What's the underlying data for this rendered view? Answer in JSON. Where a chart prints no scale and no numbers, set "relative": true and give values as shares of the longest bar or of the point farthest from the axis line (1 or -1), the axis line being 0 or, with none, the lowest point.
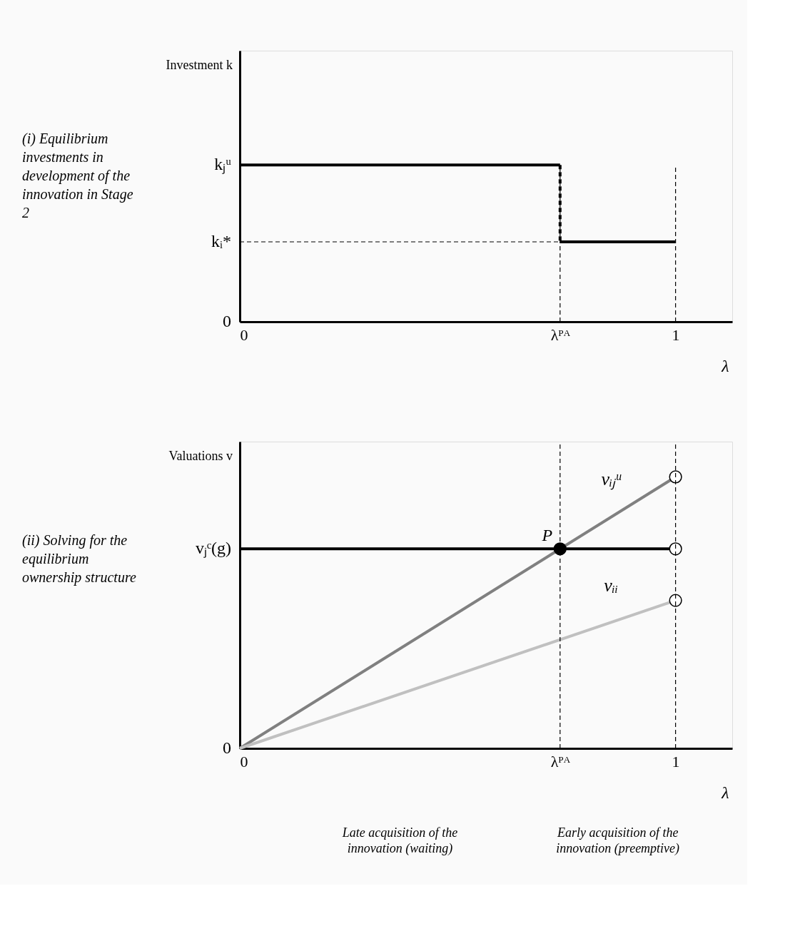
{
  "chart_data": [
    {
      "type": "line",
      "relative": true,
      "ylabel": "Investment k",
      "xlabel": "λ",
      "xlim": [
        0,
        1.13
      ],
      "xticks": [
        0,
        {
          "value": 0.735,
          "label": "λᴾᴬ"
        },
        1
      ],
      "ref_lines": [
        {
          "axis": "x",
          "value": 0.735,
          "line_style": "dashed",
          "color": "#000000"
        },
        {
          "axis": "x",
          "value": 1,
          "line_style": "dashed",
          "color": "#000000"
        },
        {
          "axis": "y",
          "value": 0.51,
          "line_style": "dashed",
          "color": "#000000",
          "label": "kᵢ*"
        }
      ],
      "series": [
        {
          "name": "kⱼᵘ",
          "x": [
            0,
            0.735
          ],
          "values": [
            1,
            1
          ],
          "color": "#000000"
        },
        {
          "x": [
            0.735,
            0.735
          ],
          "values": [
            1,
            0.51
          ],
          "color": "#000000",
          "line_style": "dashed"
        },
        {
          "x": [
            0.735,
            1
          ],
          "values": [
            0.51,
            0.51
          ],
          "color": "#000000"
        }
      ],
      "annotations": [
        "(i) Equilibrium investments in development of the innovation in Stage 2",
        "0"
      ]
    },
    {
      "type": "line",
      "relative": true,
      "ylabel": "Valuations v",
      "xlabel": "λ",
      "xlim": [
        0,
        1.13
      ],
      "xticks": [
        0,
        {
          "value": 0.735,
          "label": "λᴾᴬ"
        },
        1
      ],
      "ref_lines": [
        {
          "axis": "x",
          "value": 0.735,
          "line_style": "dashed",
          "color": "#000000"
        },
        {
          "axis": "x",
          "value": 1,
          "line_style": "dashed",
          "color": "#000000"
        }
      ],
      "series": [
        {
          "name": "vᵢⱼᵘ",
          "x": [
            0,
            1
          ],
          "values": [
            0,
            1
          ],
          "color": "#808080"
        },
        {
          "name": "vᵢᵢ",
          "x": [
            0,
            1
          ],
          "values": [
            0,
            0.545
          ],
          "color": "#c0c0c0"
        },
        {
          "name": "vⱼᶜ(g)",
          "x": [
            0,
            1
          ],
          "values": [
            0.735,
            0.735
          ],
          "color": "#000000"
        },
        {
          "type": "scatter",
          "marker": "circle",
          "x": [
            1,
            1,
            1
          ],
          "values": [
            1,
            0.735,
            0.545
          ],
          "color": "#ffffff"
        },
        {
          "type": "scatter",
          "marker": "circle",
          "x": [
            0.735
          ],
          "values": [
            0.735
          ],
          "color": "#000000"
        }
      ],
      "annotations": [
        "(ii) Solving for the equilibrium ownership structure",
        "0",
        "Late acquisition of the innovation (waiting)",
        "Early acquisition of the innovation (preemptive)",
        {
          "text": "P",
          "x": 0.735,
          "y": 0.735
        }
      ]
    }
  ]
}
